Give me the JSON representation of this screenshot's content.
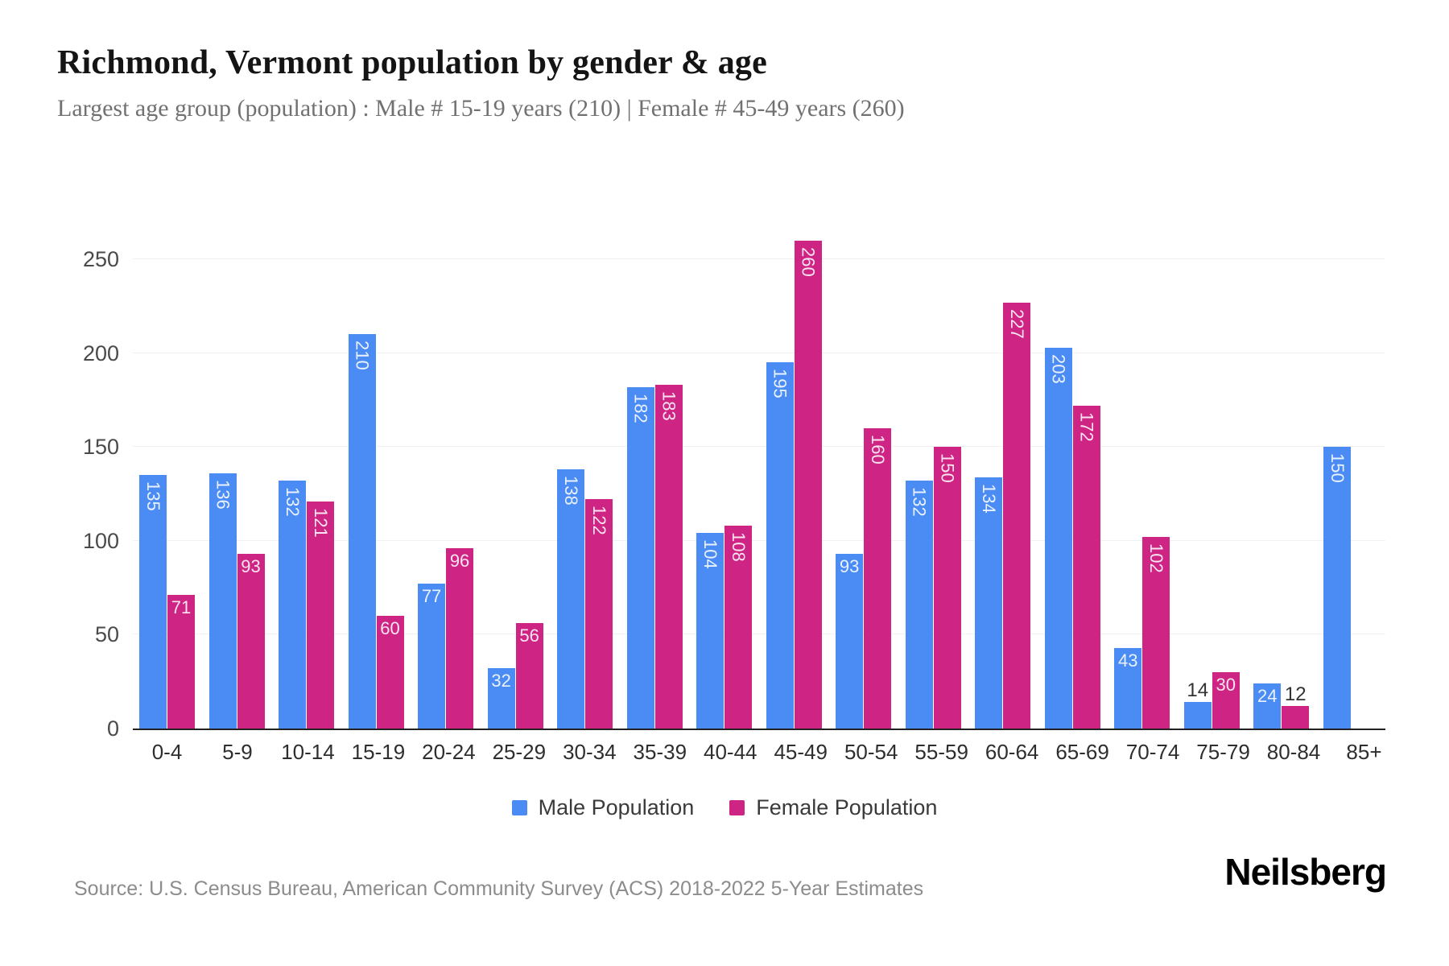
{
  "chart_data": {
    "type": "bar",
    "title": "Richmond, Vermont population by gender & age",
    "subtitle": "Largest age group (population) : Male # 15-19 years (210) | Female # 45-49 years (260)",
    "categories": [
      "0-4",
      "5-9",
      "10-14",
      "15-19",
      "20-24",
      "25-29",
      "30-34",
      "35-39",
      "40-44",
      "45-49",
      "50-54",
      "55-59",
      "60-64",
      "65-69",
      "70-74",
      "75-79",
      "80-84",
      "85+"
    ],
    "series": [
      {
        "name": "Male Population",
        "color": "#4a8bf4",
        "values": [
          135,
          136,
          132,
          210,
          77,
          32,
          138,
          182,
          104,
          195,
          93,
          132,
          134,
          203,
          43,
          14,
          24,
          150
        ]
      },
      {
        "name": "Female Population",
        "color": "#ce2483",
        "values": [
          71,
          93,
          121,
          60,
          96,
          56,
          122,
          183,
          108,
          260,
          160,
          150,
          227,
          172,
          102,
          30,
          12,
          0
        ]
      }
    ],
    "xlabel": "",
    "ylabel": "",
    "yticks": [
      0,
      50,
      100,
      150,
      200,
      250
    ],
    "ylim": [
      0,
      277
    ],
    "grid": "horizontal",
    "legend_position": "bottom",
    "colors": {
      "grid": "#f1f1f1",
      "axis": "#222222",
      "value_label_inside": "rgba(255,255,255,0.88)",
      "value_label_outside": "#333333"
    }
  },
  "footer": {
    "source": "Source: U.S. Census Bureau, American Community Survey (ACS) 2018-2022 5-Year Estimates",
    "logo": "Neilsberg"
  }
}
